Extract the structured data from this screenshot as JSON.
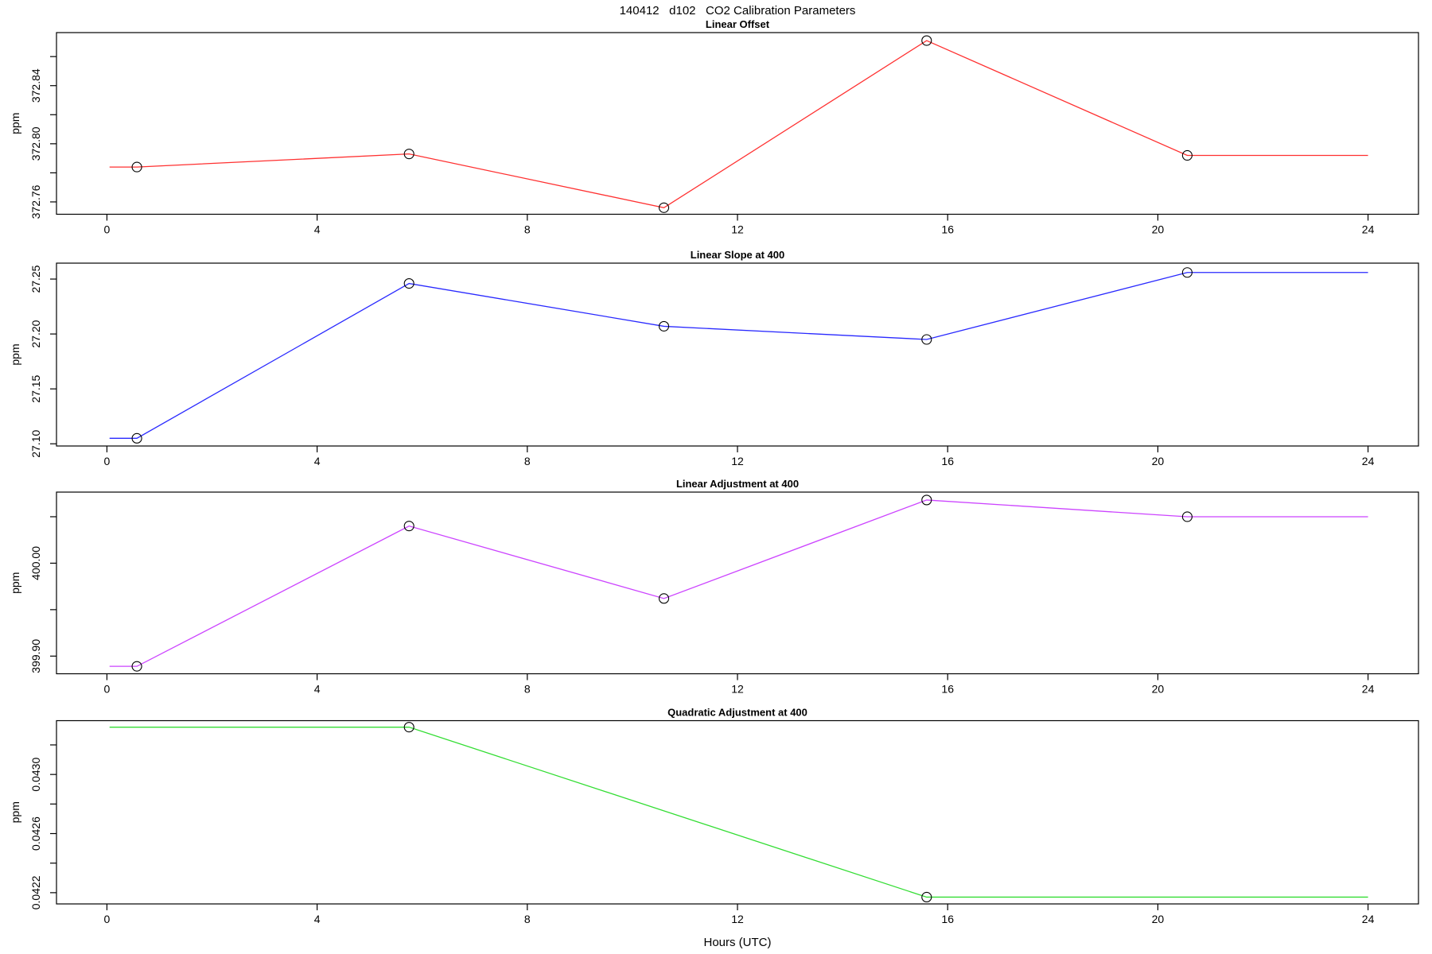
{
  "figure": {
    "title": "140412   d102   CO2 Calibration Parameters",
    "xlabel": "Hours (UTC)",
    "x_ticks": [
      0,
      4,
      8,
      12,
      16,
      20,
      24
    ],
    "xlim": [
      -0.96,
      24.96
    ],
    "axis_color": "#000000",
    "marker_color": "#000000"
  },
  "chart_data": [
    {
      "type": "line",
      "title": "Linear Offset",
      "ylabel": "ppm",
      "color": "#ff3030",
      "ylim": [
        372.7515,
        372.8765
      ],
      "y_ticks": [
        {
          "v": 372.76,
          "label": "372.76"
        },
        {
          "v": 372.78,
          "label": ""
        },
        {
          "v": 372.8,
          "label": "372.80"
        },
        {
          "v": 372.82,
          "label": ""
        },
        {
          "v": 372.84,
          "label": "372.84"
        },
        {
          "v": 372.86,
          "label": ""
        }
      ],
      "x": [
        0.05,
        0.57,
        5.75,
        10.6,
        15.6,
        20.56,
        24
      ],
      "y": [
        372.784,
        372.784,
        372.793,
        372.756,
        372.871,
        372.792,
        372.792
      ],
      "marker_x": [
        0.57,
        5.75,
        10.6,
        15.6,
        20.56
      ],
      "marker_y": [
        372.784,
        372.793,
        372.756,
        372.871,
        372.792
      ]
    },
    {
      "type": "line",
      "title": "Linear Slope at 400",
      "ylabel": "ppm",
      "color": "#2929ff",
      "ylim": [
        27.098,
        27.2645
      ],
      "y_ticks": [
        {
          "v": 27.1,
          "label": "27.10"
        },
        {
          "v": 27.15,
          "label": "27.15"
        },
        {
          "v": 27.2,
          "label": "27.20"
        },
        {
          "v": 27.25,
          "label": "27.25"
        }
      ],
      "x": [
        0.05,
        0.57,
        5.75,
        10.6,
        15.6,
        20.56,
        24
      ],
      "y": [
        27.105,
        27.105,
        27.246,
        27.207,
        27.195,
        27.256,
        27.256
      ],
      "marker_x": [
        0.57,
        5.75,
        10.6,
        15.6,
        20.56
      ],
      "marker_y": [
        27.105,
        27.246,
        27.207,
        27.195,
        27.256
      ]
    },
    {
      "type": "line",
      "title": "Linear Adjustment at 400",
      "ylabel": "ppm",
      "color": "#cc44ff",
      "ylim": [
        399.881,
        400.0765
      ],
      "y_ticks": [
        {
          "v": 399.9,
          "label": "399.90"
        },
        {
          "v": 399.95,
          "label": ""
        },
        {
          "v": 400.0,
          "label": "400.00"
        },
        {
          "v": 400.05,
          "label": ""
        }
      ],
      "x": [
        0.05,
        0.57,
        5.75,
        10.6,
        15.6,
        20.56,
        24
      ],
      "y": [
        399.889,
        399.889,
        400.04,
        399.962,
        400.068,
        400.05,
        400.05
      ],
      "marker_x": [
        0.57,
        5.75,
        10.6,
        15.6,
        20.56
      ],
      "marker_y": [
        399.889,
        400.04,
        399.962,
        400.068,
        400.05
      ]
    },
    {
      "type": "line",
      "title": "Quadratic Adjustment at 400",
      "ylabel": "ppm",
      "color": "#33dd33",
      "ylim": [
        0.042124,
        0.043364
      ],
      "y_ticks": [
        {
          "v": 0.0422,
          "label": "0.0422"
        },
        {
          "v": 0.0424,
          "label": ""
        },
        {
          "v": 0.0426,
          "label": "0.0426"
        },
        {
          "v": 0.0428,
          "label": ""
        },
        {
          "v": 0.043,
          "label": "0.0430"
        },
        {
          "v": 0.0432,
          "label": ""
        }
      ],
      "x": [
        0.05,
        5.75,
        15.6,
        24
      ],
      "y": [
        0.04332,
        0.04332,
        0.04217,
        0.04217
      ],
      "marker_x": [
        5.75,
        15.6
      ],
      "marker_y": [
        0.04332,
        0.04217
      ]
    }
  ]
}
